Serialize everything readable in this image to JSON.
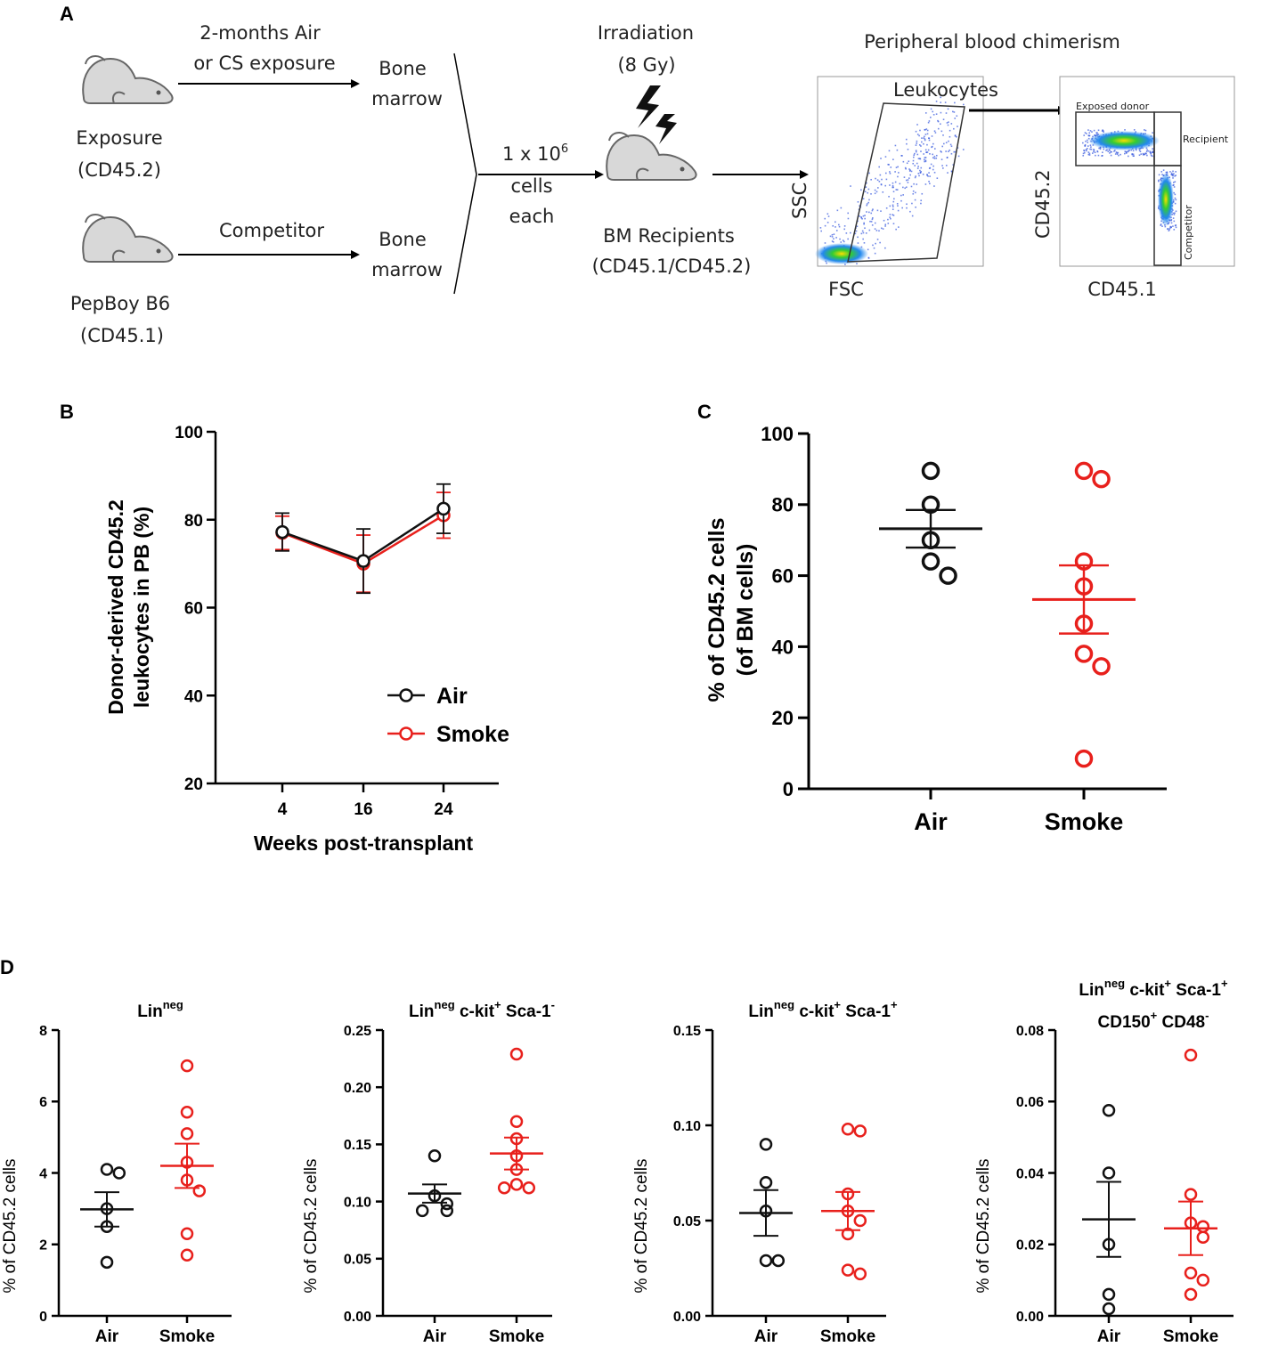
{
  "panels": {
    "a": "A",
    "b": "B",
    "c": "C",
    "d": "D"
  },
  "schematic": {
    "exposure_line1": "2-months Air",
    "exposure_line2": "or CS exposure",
    "bone_marrow_1a": "Bone",
    "bone_marrow_1b": "marrow",
    "mouse1_line1": "Exposure",
    "mouse1_line2": "(CD45.2)",
    "competitor": "Competitor",
    "bone_marrow_2a": "Bone",
    "bone_marrow_2b": "marrow",
    "mouse2_line1": "PepBoy B6",
    "mouse2_line2": "(CD45.1)",
    "cells_base": "1 x 10",
    "cells_exp": "6",
    "cells_line2": "cells",
    "cells_line3": "each",
    "irradiation_line1": "Irradiation",
    "irradiation_line2": "(8 Gy)",
    "recipients_line1": "BM Recipients",
    "recipients_line2": "(CD45.1/CD45.2)",
    "pb_chimerism": "Peripheral blood chimerism",
    "leukocytes_gate": "Leukocytes",
    "ssc": "SSC",
    "fsc": "FSC",
    "exposed_donor": "Exposed donor",
    "recipient": "Recipient",
    "competitor_gate": "Competitor",
    "cd452": "CD45.2",
    "cd451": "CD45.1"
  },
  "colors": {
    "air": "#111111",
    "smoke": "#e8201c"
  },
  "chart_data": [
    {
      "id": "B",
      "type": "line",
      "xlabel": "Weeks post-transplant",
      "ylabel_line1": "Donor-derived CD45.2",
      "ylabel_line2": "leukocytes in PB (%)",
      "categories": [
        "4",
        "16",
        "24"
      ],
      "ylim": [
        20,
        100
      ],
      "yticks": [
        "20",
        "40",
        "60",
        "80",
        "100"
      ],
      "legend": [
        "Air",
        "Smoke"
      ],
      "series": [
        {
          "name": "Air",
          "values": [
            77.2,
            70.6,
            82.5
          ],
          "err": [
            4.3,
            7.3,
            5.6
          ]
        },
        {
          "name": "Smoke",
          "values": [
            77.0,
            70.0,
            81.0
          ],
          "err": [
            3.8,
            6.5,
            5.2
          ]
        }
      ]
    },
    {
      "id": "C",
      "type": "scatter",
      "ylabel_line1": "% of CD45.2 cells",
      "ylabel_line2": "(of BM cells)",
      "categories": [
        "Air",
        "Smoke"
      ],
      "ylim": [
        0,
        100
      ],
      "yticks": [
        "0",
        "20",
        "40",
        "60",
        "80",
        "100"
      ],
      "series": [
        {
          "name": "Air",
          "points": [
            89.5,
            80,
            70,
            64,
            60
          ],
          "mean": 73.2,
          "sem": 5.3
        },
        {
          "name": "Smoke",
          "points": [
            89.5,
            87.2,
            64,
            57,
            46.5,
            38,
            34.5,
            8.5
          ],
          "mean": 53.3,
          "sem": 9.6
        }
      ]
    },
    {
      "id": "D1",
      "type": "scatter",
      "title_base": "Lin",
      "title_sup": "neg",
      "ylabel": "% of CD45.2 cells",
      "categories": [
        "Air",
        "Smoke"
      ],
      "ylim": [
        0,
        8
      ],
      "yticks": [
        "0",
        "2",
        "4",
        "6",
        "8"
      ],
      "series": [
        {
          "name": "Air",
          "points": [
            4.1,
            4.0,
            3.0,
            2.5,
            1.5
          ],
          "mean": 2.98,
          "sem": 0.48
        },
        {
          "name": "Smoke",
          "points": [
            7.0,
            5.7,
            5.1,
            4.3,
            3.8,
            3.5,
            2.3,
            1.7
          ],
          "mean": 4.2,
          "sem": 0.62
        }
      ]
    },
    {
      "id": "D2",
      "type": "scatter",
      "title_a": "Lin",
      "title_a_sup": "neg",
      "title_b": " c-kit",
      "title_b_sup": "+",
      "title_c": " Sca-1",
      "title_c_sup": "-",
      "ylabel": "% of CD45.2 cells",
      "categories": [
        "Air",
        "Smoke"
      ],
      "ylim": [
        0,
        0.25
      ],
      "yticks": [
        "0.00",
        "0.05",
        "0.10",
        "0.15",
        "0.20",
        "0.25"
      ],
      "series": [
        {
          "name": "Air",
          "points": [
            0.14,
            0.105,
            0.098,
            0.092,
            0.092
          ],
          "mean": 0.107,
          "sem": 0.008
        },
        {
          "name": "Smoke",
          "points": [
            0.229,
            0.17,
            0.155,
            0.14,
            0.128,
            0.115,
            0.112,
            0.112
          ],
          "mean": 0.142,
          "sem": 0.014
        }
      ]
    },
    {
      "id": "D3",
      "type": "scatter",
      "title_a": "Lin",
      "title_a_sup": "neg",
      "title_b": " c-kit",
      "title_b_sup": "+",
      "title_c": " Sca-1",
      "title_c_sup": "+",
      "ylabel": "% of CD45.2 cells",
      "categories": [
        "Air",
        "Smoke"
      ],
      "ylim": [
        0,
        0.15
      ],
      "yticks": [
        "0.00",
        "0.05",
        "0.10",
        "0.15"
      ],
      "series": [
        {
          "name": "Air",
          "points": [
            0.09,
            0.07,
            0.055,
            0.029,
            0.029
          ],
          "mean": 0.054,
          "sem": 0.012
        },
        {
          "name": "Smoke",
          "points": [
            0.098,
            0.097,
            0.064,
            0.055,
            0.05,
            0.043,
            0.024,
            0.022
          ],
          "mean": 0.055,
          "sem": 0.01
        }
      ]
    },
    {
      "id": "D4",
      "type": "scatter",
      "title_a": "Lin",
      "title_a_sup": "neg",
      "title_b": " c-kit",
      "title_b_sup": "+",
      "title_c": " Sca-1",
      "title_c_sup": "+",
      "title2_a": "CD150",
      "title2_a_sup": "+",
      "title2_b": " CD48",
      "title2_b_sup": "-",
      "ylabel": "% of CD45.2 cells",
      "categories": [
        "Air",
        "Smoke"
      ],
      "ylim": [
        0,
        0.08
      ],
      "yticks": [
        "0.00",
        "0.02",
        "0.04",
        "0.06",
        "0.08"
      ],
      "series": [
        {
          "name": "Air",
          "points": [
            0.0575,
            0.04,
            0.02,
            0.006,
            0.002
          ],
          "mean": 0.027,
          "sem": 0.0105
        },
        {
          "name": "Smoke",
          "points": [
            0.073,
            0.034,
            0.026,
            0.025,
            0.022,
            0.012,
            0.01,
            0.006
          ],
          "mean": 0.0245,
          "sem": 0.0075
        }
      ]
    }
  ]
}
